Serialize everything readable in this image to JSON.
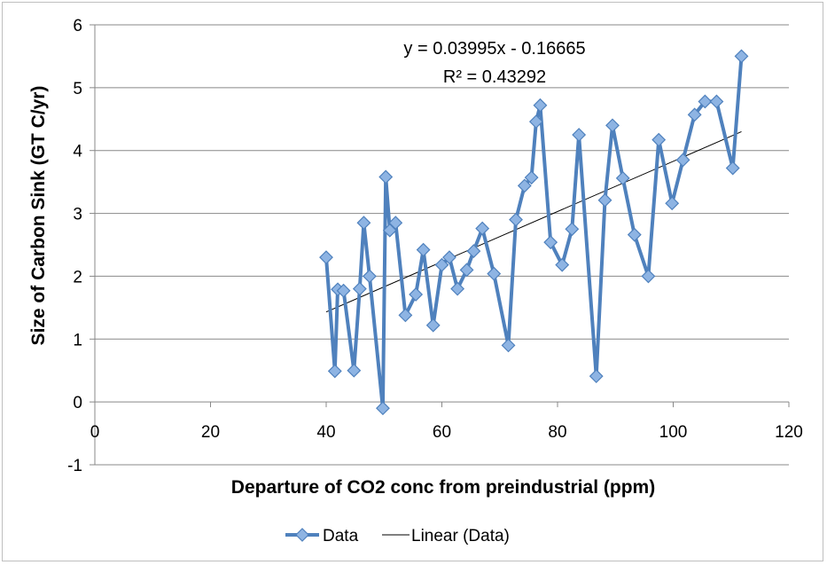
{
  "chart_data": {
    "type": "line",
    "xlabel": "Departure of CO2 conc from preindustrial (ppm)",
    "ylabel": "Size of Carbon Sink (GT C/yr)",
    "xlim": [
      0,
      120
    ],
    "ylim": [
      -1,
      6
    ],
    "x_ticks": [
      0,
      20,
      40,
      60,
      80,
      100,
      120
    ],
    "y_ticks": [
      -1,
      0,
      1,
      2,
      3,
      4,
      5,
      6
    ],
    "x_tick_labels": [
      "0",
      "20",
      "40",
      "60",
      "80",
      "100",
      "120"
    ],
    "y_tick_labels": [
      "-1",
      "0",
      "1",
      "2",
      "3",
      "4",
      "5",
      "6"
    ],
    "grid": "horizontal",
    "legend_position": "bottom",
    "series": [
      {
        "name": "Data",
        "color": "#4f81bd",
        "marker": "diamond",
        "x": [
          40.0,
          41.5,
          42.0,
          43.0,
          44.8,
          45.8,
          46.5,
          47.5,
          49.8,
          50.3,
          51.0,
          52.0,
          53.7,
          55.5,
          56.8,
          58.5,
          60.0,
          61.3,
          62.7,
          64.3,
          65.5,
          67.0,
          69.0,
          71.5,
          72.8,
          74.3,
          75.5,
          76.3,
          77.0,
          78.8,
          80.8,
          82.5,
          83.7,
          86.7,
          88.2,
          89.5,
          91.3,
          93.3,
          95.7,
          97.5,
          99.8,
          101.7,
          103.7,
          105.5,
          107.5,
          110.3,
          111.8
        ],
        "values": [
          2.3,
          0.49,
          1.79,
          1.77,
          0.5,
          1.8,
          2.85,
          2.0,
          -0.1,
          3.58,
          2.73,
          2.85,
          1.38,
          1.71,
          2.42,
          1.22,
          2.18,
          2.3,
          1.8,
          2.1,
          2.4,
          2.76,
          2.04,
          0.9,
          2.9,
          3.44,
          3.57,
          4.46,
          4.72,
          2.54,
          2.18,
          2.75,
          4.25,
          0.41,
          3.21,
          4.4,
          3.56,
          2.66,
          2.0,
          4.17,
          3.16,
          3.85,
          4.57,
          4.78,
          4.78,
          3.72,
          5.5
        ]
      },
      {
        "name": "Linear (Data)",
        "color": "#000000",
        "marker": "none",
        "x": [
          40.0,
          111.8
        ],
        "values": [
          1.43135,
          4.29974
        ]
      }
    ],
    "trendline": {
      "equation": "y = 0.03995x - 0.16665",
      "r_squared": "R² = 0.43292"
    }
  }
}
